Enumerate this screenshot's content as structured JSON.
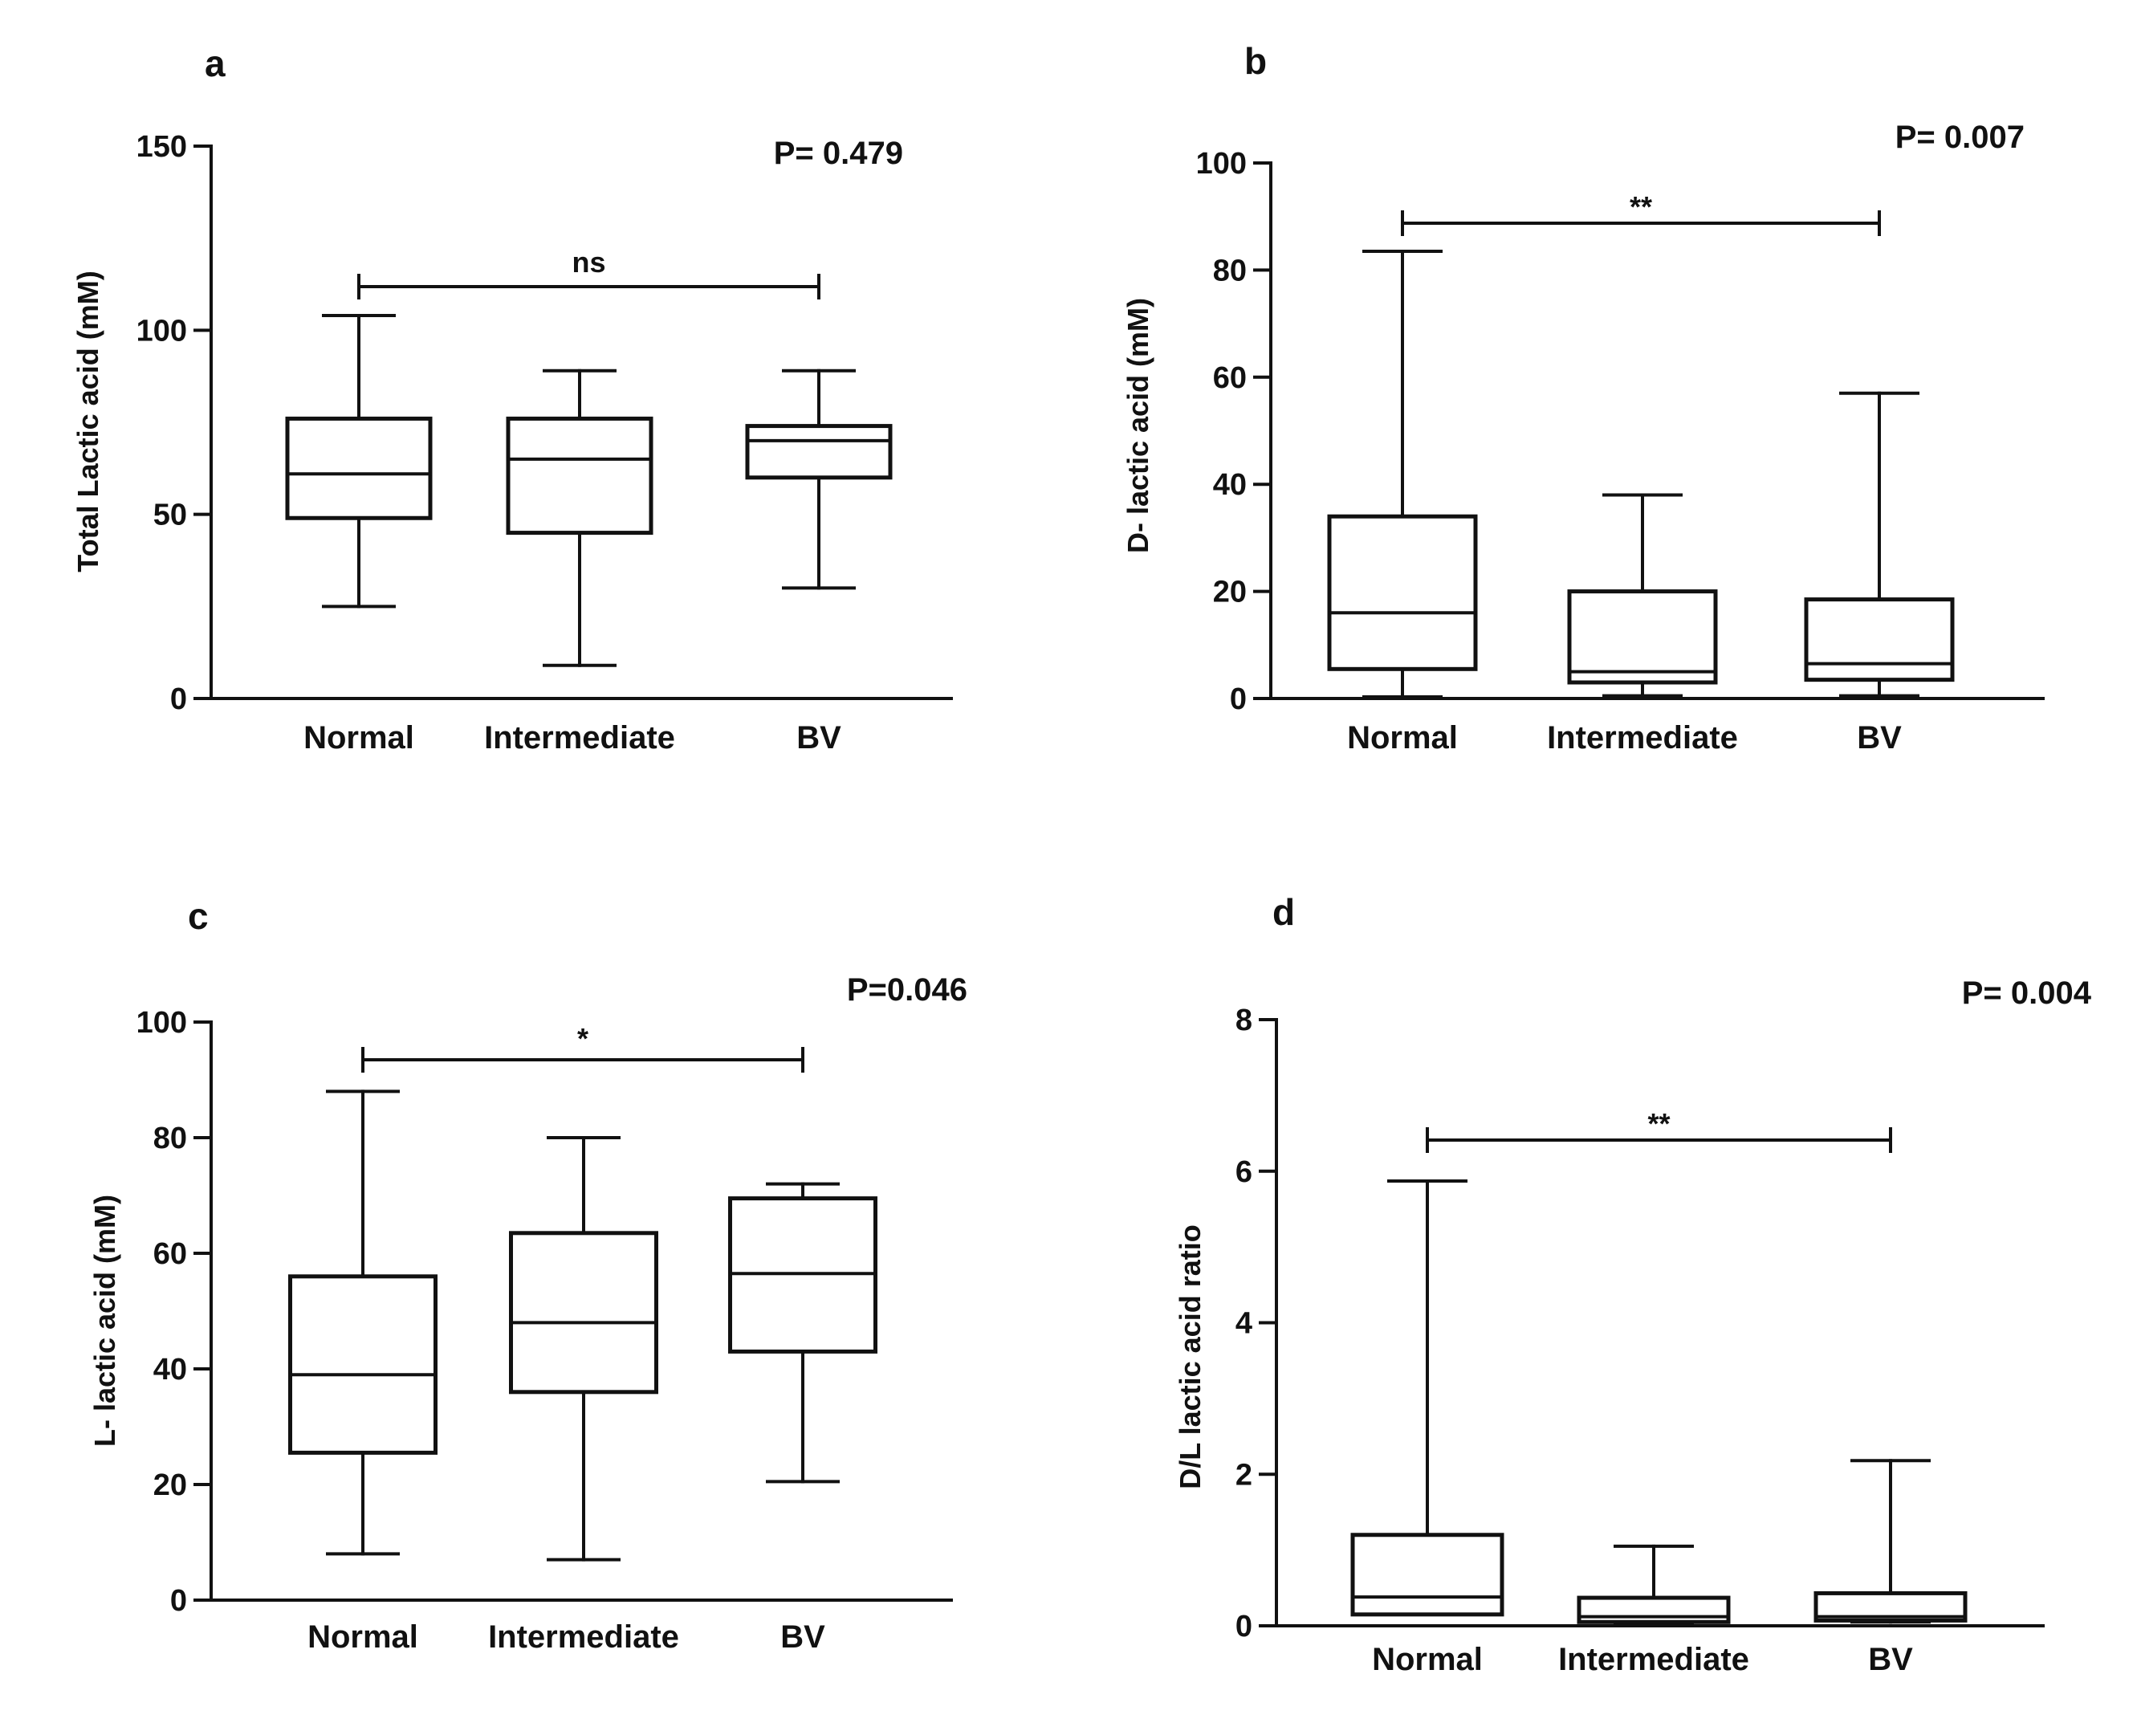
{
  "chart_data": [
    {
      "panel": "a",
      "type": "box",
      "categories": [
        "Normal",
        "Intermediate",
        "BV"
      ],
      "ylabel": "Total Lactic acid (mM)",
      "ylim": [
        0,
        150
      ],
      "yticks": [
        0,
        50,
        100,
        150
      ],
      "p_value": "P= 0.479",
      "comparison": {
        "from": "Normal",
        "to": "BV",
        "label": "ns"
      },
      "boxes": [
        {
          "category": "Normal",
          "min": 25,
          "q1": 49,
          "median": 61,
          "q3": 76,
          "max": 104
        },
        {
          "category": "Intermediate",
          "min": 9,
          "q1": 45,
          "median": 65,
          "q3": 76,
          "max": 89
        },
        {
          "category": "BV",
          "min": 30,
          "q1": 60,
          "median": 70,
          "q3": 74,
          "max": 89
        }
      ]
    },
    {
      "panel": "b",
      "type": "box",
      "categories": [
        "Normal",
        "Intermediate",
        "BV"
      ],
      "ylabel": "D- lactic acid (mM)",
      "ylim": [
        0,
        100
      ],
      "yticks": [
        0,
        20,
        40,
        60,
        80,
        100
      ],
      "p_value": "P= 0.007",
      "comparison": {
        "from": "Normal",
        "to": "BV",
        "label": "**"
      },
      "boxes": [
        {
          "category": "Normal",
          "min": 0.3,
          "q1": 5.5,
          "median": 16,
          "q3": 34,
          "max": 83.5
        },
        {
          "category": "Intermediate",
          "min": 0.5,
          "q1": 3,
          "median": 5,
          "q3": 20,
          "max": 38
        },
        {
          "category": "BV",
          "min": 0.5,
          "q1": 3.5,
          "median": 6.5,
          "q3": 18.5,
          "max": 57
        }
      ]
    },
    {
      "panel": "c",
      "type": "box",
      "categories": [
        "Normal",
        "Intermediate",
        "BV"
      ],
      "ylabel": "L- lactic acid (mM)",
      "ylim": [
        0,
        100
      ],
      "yticks": [
        0,
        20,
        40,
        60,
        80,
        100
      ],
      "p_value": "P=0.046",
      "comparison": {
        "from": "Normal",
        "to": "BV",
        "label": "*"
      },
      "boxes": [
        {
          "category": "Normal",
          "min": 8,
          "q1": 25.5,
          "median": 39,
          "q3": 56,
          "max": 88
        },
        {
          "category": "Intermediate",
          "min": 7,
          "q1": 36,
          "median": 48,
          "q3": 63.5,
          "max": 80
        },
        {
          "category": "BV",
          "min": 20.5,
          "q1": 43,
          "median": 56.5,
          "q3": 69.5,
          "max": 72
        }
      ]
    },
    {
      "panel": "d",
      "type": "box",
      "categories": [
        "Normal",
        "Intermediate",
        "BV"
      ],
      "ylabel": "D/L lactic acid ratio",
      "ylim": [
        0,
        8
      ],
      "yticks": [
        0,
        2,
        4,
        6,
        8
      ],
      "p_value": "P= 0.004",
      "comparison": {
        "from": "Normal",
        "to": "BV",
        "label": "**"
      },
      "boxes": [
        {
          "category": "Normal",
          "min": 0.15,
          "q1": 0.15,
          "median": 0.38,
          "q3": 1.2,
          "max": 5.87
        },
        {
          "category": "Intermediate",
          "min": 0.02,
          "q1": 0.05,
          "median": 0.12,
          "q3": 0.37,
          "max": 1.05
        },
        {
          "category": "BV",
          "min": 0.05,
          "q1": 0.07,
          "median": 0.12,
          "q3": 0.43,
          "max": 2.18
        }
      ]
    }
  ]
}
